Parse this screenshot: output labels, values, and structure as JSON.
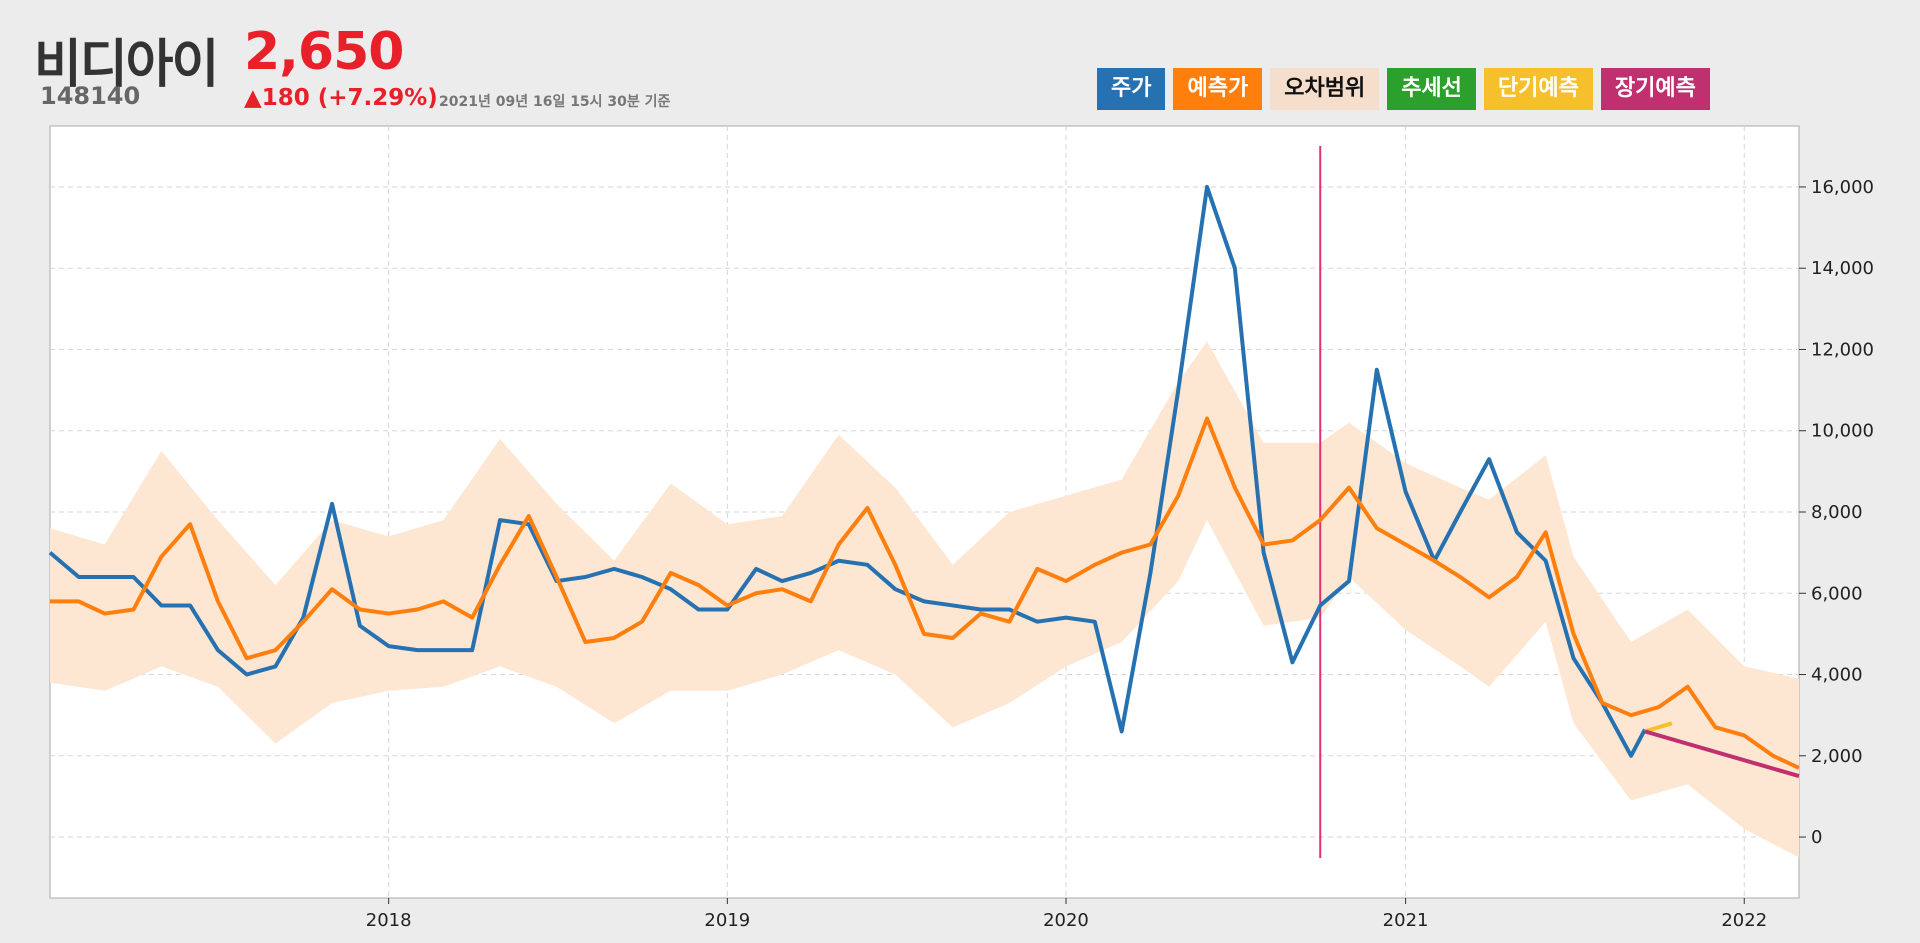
{
  "header": {
    "name": "비디아이",
    "code": "148140",
    "price": "2,650",
    "change": "▲180 (+7.29%)",
    "as_of": "2021년 09년 16일 15시 30분 기준"
  },
  "legend": [
    {
      "label": "주가",
      "color": "#2671b1",
      "text_color": "#ffffff"
    },
    {
      "label": "예측가",
      "color": "#ff7f0e",
      "text_color": "#ffffff"
    },
    {
      "label": "오차범위",
      "color": "#f5dfcc",
      "text_color": "#111111"
    },
    {
      "label": "추세선",
      "color": "#2ca02c",
      "text_color": "#ffffff"
    },
    {
      "label": "단기예측",
      "color": "#f6c02c",
      "text_color": "#ffffff"
    },
    {
      "label": "장기예측",
      "color": "#c0306e",
      "text_color": "#ffffff"
    }
  ],
  "chart_data": {
    "type": "line",
    "x_axis": {
      "type": "date",
      "range": [
        "2017-01-01",
        "2022-03-01"
      ],
      "ticks": [
        "2018",
        "2019",
        "2020",
        "2021",
        "2022"
      ]
    },
    "y_axis": {
      "range": [
        -1500,
        17500
      ],
      "ticks": [
        "0",
        "2,000",
        "4,000",
        "6,000",
        "8,000",
        "10,000",
        "12,000",
        "14,000",
        "16,000"
      ],
      "position": "right"
    },
    "grid": true,
    "vertical_marker": {
      "x": "2020-10-01",
      "color": "#e0307a"
    },
    "series": [
      {
        "name": "주가",
        "color": "#2671b1",
        "points": [
          [
            "2017-01-01",
            7000
          ],
          [
            "2017-02-01",
            6400
          ],
          [
            "2017-03-01",
            6400
          ],
          [
            "2017-04-01",
            6400
          ],
          [
            "2017-05-01",
            5700
          ],
          [
            "2017-06-01",
            5700
          ],
          [
            "2017-07-01",
            4600
          ],
          [
            "2017-08-01",
            4000
          ],
          [
            "2017-09-01",
            4200
          ],
          [
            "2017-10-01",
            5400
          ],
          [
            "2017-11-01",
            8200
          ],
          [
            "2017-12-01",
            5200
          ],
          [
            "2018-01-01",
            4700
          ],
          [
            "2018-02-01",
            4600
          ],
          [
            "2018-03-01",
            4600
          ],
          [
            "2018-04-01",
            4600
          ],
          [
            "2018-05-01",
            7800
          ],
          [
            "2018-06-01",
            7700
          ],
          [
            "2018-07-01",
            6300
          ],
          [
            "2018-08-01",
            6400
          ],
          [
            "2018-09-01",
            6600
          ],
          [
            "2018-10-01",
            6400
          ],
          [
            "2018-11-01",
            6100
          ],
          [
            "2018-12-01",
            5600
          ],
          [
            "2019-01-01",
            5600
          ],
          [
            "2019-02-01",
            6600
          ],
          [
            "2019-03-01",
            6300
          ],
          [
            "2019-04-01",
            6500
          ],
          [
            "2019-05-01",
            6800
          ],
          [
            "2019-06-01",
            6700
          ],
          [
            "2019-07-01",
            6100
          ],
          [
            "2019-08-01",
            5800
          ],
          [
            "2019-09-01",
            5700
          ],
          [
            "2019-10-01",
            5600
          ],
          [
            "2019-11-01",
            5600
          ],
          [
            "2019-12-01",
            5300
          ],
          [
            "2020-01-01",
            5400
          ],
          [
            "2020-02-01",
            5300
          ],
          [
            "2020-03-01",
            2600
          ],
          [
            "2020-04-01",
            6500
          ],
          [
            "2020-05-01",
            11000
          ],
          [
            "2020-06-01",
            16000
          ],
          [
            "2020-07-01",
            14000
          ],
          [
            "2020-08-01",
            7000
          ],
          [
            "2020-09-01",
            4300
          ],
          [
            "2020-10-01",
            5700
          ],
          [
            "2020-11-01",
            6300
          ],
          [
            "2020-12-01",
            11500
          ],
          [
            "2021-01-01",
            8500
          ],
          [
            "2021-02-01",
            6800
          ],
          [
            "2021-03-01",
            8000
          ],
          [
            "2021-04-01",
            9300
          ],
          [
            "2021-05-01",
            7500
          ],
          [
            "2021-06-01",
            6800
          ],
          [
            "2021-07-01",
            4400
          ],
          [
            "2021-08-01",
            3300
          ],
          [
            "2021-09-01",
            2000
          ],
          [
            "2021-09-16",
            2650
          ]
        ]
      },
      {
        "name": "예측가",
        "color": "#ff7f0e",
        "points": [
          [
            "2017-01-01",
            5800
          ],
          [
            "2017-02-01",
            5800
          ],
          [
            "2017-03-01",
            5500
          ],
          [
            "2017-04-01",
            5600
          ],
          [
            "2017-05-01",
            6900
          ],
          [
            "2017-06-01",
            7700
          ],
          [
            "2017-07-01",
            5800
          ],
          [
            "2017-08-01",
            4400
          ],
          [
            "2017-09-01",
            4600
          ],
          [
            "2017-10-01",
            5300
          ],
          [
            "2017-11-01",
            6100
          ],
          [
            "2017-12-01",
            5600
          ],
          [
            "2018-01-01",
            5500
          ],
          [
            "2018-02-01",
            5600
          ],
          [
            "2018-03-01",
            5800
          ],
          [
            "2018-04-01",
            5400
          ],
          [
            "2018-05-01",
            6700
          ],
          [
            "2018-06-01",
            7900
          ],
          [
            "2018-07-01",
            6400
          ],
          [
            "2018-08-01",
            4800
          ],
          [
            "2018-09-01",
            4900
          ],
          [
            "2018-10-01",
            5300
          ],
          [
            "2018-11-01",
            6500
          ],
          [
            "2018-12-01",
            6200
          ],
          [
            "2019-01-01",
            5700
          ],
          [
            "2019-02-01",
            6000
          ],
          [
            "2019-03-01",
            6100
          ],
          [
            "2019-04-01",
            5800
          ],
          [
            "2019-05-01",
            7200
          ],
          [
            "2019-06-01",
            8100
          ],
          [
            "2019-07-01",
            6700
          ],
          [
            "2019-08-01",
            5000
          ],
          [
            "2019-09-01",
            4900
          ],
          [
            "2019-10-01",
            5500
          ],
          [
            "2019-11-01",
            5300
          ],
          [
            "2019-12-01",
            6600
          ],
          [
            "2020-01-01",
            6300
          ],
          [
            "2020-02-01",
            6700
          ],
          [
            "2020-03-01",
            7000
          ],
          [
            "2020-04-01",
            7200
          ],
          [
            "2020-05-01",
            8400
          ],
          [
            "2020-06-01",
            10300
          ],
          [
            "2020-07-01",
            8600
          ],
          [
            "2020-08-01",
            7200
          ],
          [
            "2020-09-01",
            7300
          ],
          [
            "2020-10-01",
            7800
          ],
          [
            "2020-11-01",
            8600
          ],
          [
            "2020-12-01",
            7600
          ],
          [
            "2021-01-01",
            7200
          ],
          [
            "2021-02-01",
            6800
          ],
          [
            "2021-03-01",
            6400
          ],
          [
            "2021-04-01",
            5900
          ],
          [
            "2021-05-01",
            6400
          ],
          [
            "2021-06-01",
            7500
          ],
          [
            "2021-07-01",
            5000
          ],
          [
            "2021-08-01",
            3300
          ],
          [
            "2021-09-01",
            3000
          ],
          [
            "2021-10-01",
            3200
          ],
          [
            "2021-11-01",
            3700
          ],
          [
            "2021-12-01",
            2700
          ],
          [
            "2022-01-01",
            2500
          ],
          [
            "2022-02-01",
            2000
          ],
          [
            "2022-03-01",
            1700
          ]
        ]
      }
    ],
    "error_band": {
      "name": "오차범위",
      "color": "#fde6d2",
      "points": [
        [
          "2017-01-01",
          3800,
          7600
        ],
        [
          "2017-03-01",
          3600,
          7200
        ],
        [
          "2017-05-01",
          4200,
          9500
        ],
        [
          "2017-07-01",
          3700,
          7800
        ],
        [
          "2017-09-01",
          2300,
          6200
        ],
        [
          "2017-11-01",
          3300,
          7800
        ],
        [
          "2018-01-01",
          3600,
          7400
        ],
        [
          "2018-03-01",
          3700,
          7800
        ],
        [
          "2018-05-01",
          4200,
          9800
        ],
        [
          "2018-07-01",
          3700,
          8200
        ],
        [
          "2018-09-01",
          2800,
          6800
        ],
        [
          "2018-11-01",
          3600,
          8700
        ],
        [
          "2019-01-01",
          3600,
          7700
        ],
        [
          "2019-03-01",
          4000,
          7900
        ],
        [
          "2019-05-01",
          4600,
          9900
        ],
        [
          "2019-07-01",
          4000,
          8600
        ],
        [
          "2019-09-01",
          2700,
          6700
        ],
        [
          "2019-11-01",
          3300,
          8000
        ],
        [
          "2020-01-01",
          4200,
          8400
        ],
        [
          "2020-03-01",
          4800,
          8800
        ],
        [
          "2020-05-01",
          6300,
          11200
        ],
        [
          "2020-06-01",
          7800,
          12200
        ],
        [
          "2020-08-01",
          5200,
          9700
        ],
        [
          "2020-10-01",
          5400,
          9700
        ],
        [
          "2020-11-01",
          6400,
          10200
        ],
        [
          "2021-01-01",
          5100,
          9200
        ],
        [
          "2021-03-01",
          4200,
          8600
        ],
        [
          "2021-04-01",
          3700,
          8300
        ],
        [
          "2021-06-01",
          5300,
          9400
        ],
        [
          "2021-07-01",
          2800,
          6900
        ],
        [
          "2021-09-01",
          900,
          4800
        ],
        [
          "2021-11-01",
          1300,
          5600
        ],
        [
          "2022-01-01",
          200,
          4200
        ],
        [
          "2022-03-01",
          -500,
          3900
        ]
      ]
    },
    "forecasts": [
      {
        "name": "단기예측",
        "color": "#f6c02c",
        "points": [
          [
            "2021-09-16",
            2600
          ],
          [
            "2021-10-15",
            2800
          ]
        ]
      },
      {
        "name": "장기예측",
        "color": "#c0306e",
        "points": [
          [
            "2021-09-16",
            2600
          ],
          [
            "2022-03-01",
            1500
          ]
        ]
      }
    ]
  }
}
